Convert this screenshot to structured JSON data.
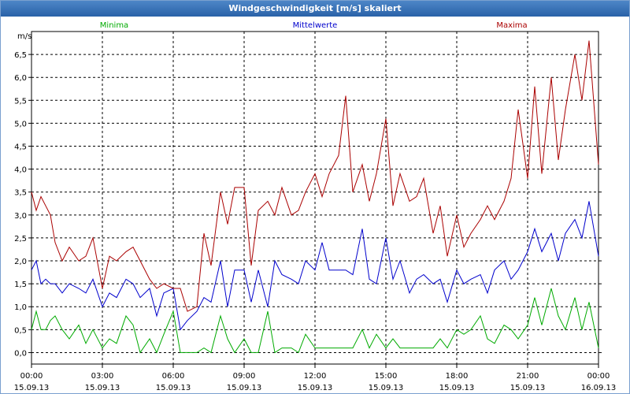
{
  "window": {
    "title": "Windgeschwindigkeit [m/s] skaliert"
  },
  "chart_data": {
    "type": "line",
    "title": "Windgeschwindigkeit [m/s] skaliert",
    "ylabel": "m/s",
    "ylim": [
      -0.25,
      7.0
    ],
    "y_ticks": [
      "0,0",
      "0,5",
      "1,0",
      "1,5",
      "2,0",
      "2,5",
      "3,0",
      "3,5",
      "4,0",
      "4,5",
      "5,0",
      "5,5",
      "6,0",
      "6,5"
    ],
    "y_tick_values": [
      0,
      0.5,
      1,
      1.5,
      2,
      2.5,
      3,
      3.5,
      4,
      4.5,
      5,
      5.5,
      6,
      6.5
    ],
    "xlim": [
      0,
      24
    ],
    "x_ticks": [
      {
        "h": 0,
        "time": "00:00",
        "date": "15.09.13"
      },
      {
        "h": 3,
        "time": "03:00",
        "date": "15.09.13"
      },
      {
        "h": 6,
        "time": "06:00",
        "date": "15.09.13"
      },
      {
        "h": 9,
        "time": "09:00",
        "date": "15.09.13"
      },
      {
        "h": 12,
        "time": "12:00",
        "date": "15.09.13"
      },
      {
        "h": 15,
        "time": "15:00",
        "date": "15.09.13"
      },
      {
        "h": 18,
        "time": "18:00",
        "date": "15.09.13"
      },
      {
        "h": 21,
        "time": "21:00",
        "date": "15.09.13"
      },
      {
        "h": 24,
        "time": "00:00",
        "date": "16.09.13"
      }
    ],
    "series": [
      {
        "name": "Minima",
        "color": "#00aa00",
        "x": [
          0,
          0.2,
          0.4,
          0.6,
          0.8,
          1,
          1.3,
          1.6,
          2,
          2.3,
          2.6,
          3,
          3.3,
          3.6,
          4,
          4.3,
          4.6,
          5,
          5.3,
          5.6,
          6,
          6.3,
          6.6,
          7,
          7.3,
          7.6,
          8,
          8.3,
          8.6,
          9,
          9.3,
          9.6,
          10,
          10.3,
          10.6,
          11,
          11.3,
          11.6,
          12,
          12.3,
          12.6,
          13,
          13.3,
          13.6,
          14,
          14.3,
          14.6,
          15,
          15.3,
          15.6,
          16,
          16.3,
          16.6,
          17,
          17.3,
          17.6,
          18,
          18.3,
          18.6,
          19,
          19.3,
          19.6,
          20,
          20.3,
          20.6,
          21,
          21.3,
          21.6,
          22,
          22.3,
          22.6,
          23,
          23.3,
          23.6,
          24
        ],
        "y": [
          0.5,
          0.9,
          0.5,
          0.5,
          0.7,
          0.8,
          0.5,
          0.3,
          0.6,
          0.2,
          0.5,
          0.1,
          0.3,
          0.2,
          0.8,
          0.6,
          0.0,
          0.3,
          0.0,
          0.4,
          0.9,
          0.0,
          0.0,
          0.0,
          0.1,
          0.0,
          0.8,
          0.3,
          0.0,
          0.3,
          0.0,
          0.0,
          0.9,
          0.0,
          0.1,
          0.1,
          0.0,
          0.4,
          0.1,
          0.1,
          0.1,
          0.1,
          0.1,
          0.1,
          0.5,
          0.1,
          0.4,
          0.1,
          0.3,
          0.1,
          0.1,
          0.1,
          0.1,
          0.1,
          0.3,
          0.1,
          0.5,
          0.4,
          0.5,
          0.8,
          0.3,
          0.2,
          0.6,
          0.5,
          0.3,
          0.6,
          1.2,
          0.6,
          1.4,
          0.8,
          0.5,
          1.2,
          0.5,
          1.1,
          0.1
        ]
      },
      {
        "name": "Mittelwerte",
        "color": "#0000cc",
        "x": [
          0,
          0.2,
          0.4,
          0.6,
          0.8,
          1,
          1.3,
          1.6,
          2,
          2.3,
          2.6,
          3,
          3.3,
          3.6,
          4,
          4.3,
          4.6,
          5,
          5.3,
          5.6,
          6,
          6.3,
          6.6,
          7,
          7.3,
          7.6,
          8,
          8.3,
          8.6,
          9,
          9.3,
          9.6,
          10,
          10.3,
          10.6,
          11,
          11.3,
          11.6,
          12,
          12.3,
          12.6,
          13,
          13.3,
          13.6,
          14,
          14.3,
          14.6,
          15,
          15.3,
          15.6,
          16,
          16.3,
          16.6,
          17,
          17.3,
          17.6,
          18,
          18.3,
          18.6,
          19,
          19.3,
          19.6,
          20,
          20.3,
          20.6,
          21,
          21.3,
          21.6,
          22,
          22.3,
          22.6,
          23,
          23.3,
          23.6,
          24
        ],
        "y": [
          1.8,
          2.0,
          1.5,
          1.6,
          1.5,
          1.5,
          1.3,
          1.5,
          1.4,
          1.3,
          1.6,
          1.0,
          1.3,
          1.2,
          1.6,
          1.5,
          1.2,
          1.4,
          0.8,
          1.3,
          1.4,
          0.5,
          0.7,
          0.9,
          1.2,
          1.1,
          2.0,
          1.0,
          1.8,
          1.8,
          1.1,
          1.8,
          1.0,
          2.0,
          1.7,
          1.6,
          1.5,
          2.0,
          1.8,
          2.4,
          1.8,
          1.8,
          1.8,
          1.7,
          2.7,
          1.6,
          1.5,
          2.5,
          1.6,
          2.0,
          1.3,
          1.6,
          1.7,
          1.5,
          1.6,
          1.1,
          1.8,
          1.5,
          1.6,
          1.7,
          1.3,
          1.8,
          2.0,
          1.6,
          1.8,
          2.2,
          2.7,
          2.2,
          2.6,
          2.0,
          2.6,
          2.9,
          2.5,
          3.3,
          2.1
        ]
      },
      {
        "name": "Maxima",
        "color": "#aa0000",
        "x": [
          0,
          0.2,
          0.4,
          0.6,
          0.8,
          1,
          1.3,
          1.6,
          2,
          2.3,
          2.6,
          3,
          3.3,
          3.6,
          4,
          4.3,
          4.6,
          5,
          5.3,
          5.6,
          6,
          6.3,
          6.6,
          7,
          7.3,
          7.6,
          8,
          8.3,
          8.6,
          9,
          9.3,
          9.6,
          10,
          10.3,
          10.6,
          11,
          11.3,
          11.6,
          12,
          12.3,
          12.6,
          13,
          13.3,
          13.6,
          14,
          14.3,
          14.6,
          15,
          15.3,
          15.6,
          16,
          16.3,
          16.6,
          17,
          17.3,
          17.6,
          18,
          18.3,
          18.6,
          19,
          19.3,
          19.6,
          20,
          20.3,
          20.6,
          21,
          21.3,
          21.6,
          22,
          22.3,
          22.6,
          23,
          23.3,
          23.6,
          24
        ],
        "y": [
          3.5,
          3.1,
          3.4,
          3.2,
          3.0,
          2.4,
          2.0,
          2.3,
          2.0,
          2.1,
          2.5,
          1.4,
          2.1,
          2.0,
          2.2,
          2.3,
          2.0,
          1.6,
          1.4,
          1.5,
          1.4,
          1.4,
          0.9,
          1.0,
          2.6,
          1.9,
          3.5,
          2.8,
          3.6,
          3.6,
          1.9,
          3.1,
          3.3,
          3.0,
          3.6,
          3.0,
          3.1,
          3.5,
          3.9,
          3.4,
          3.9,
          4.3,
          5.6,
          3.5,
          4.1,
          3.3,
          3.9,
          5.1,
          3.2,
          3.9,
          3.3,
          3.4,
          3.8,
          2.6,
          3.2,
          2.1,
          3.0,
          2.3,
          2.6,
          2.9,
          3.2,
          2.9,
          3.3,
          3.8,
          5.3,
          3.8,
          5.8,
          3.9,
          6.0,
          4.2,
          5.3,
          6.5,
          5.5,
          6.8,
          4.1
        ]
      }
    ]
  }
}
